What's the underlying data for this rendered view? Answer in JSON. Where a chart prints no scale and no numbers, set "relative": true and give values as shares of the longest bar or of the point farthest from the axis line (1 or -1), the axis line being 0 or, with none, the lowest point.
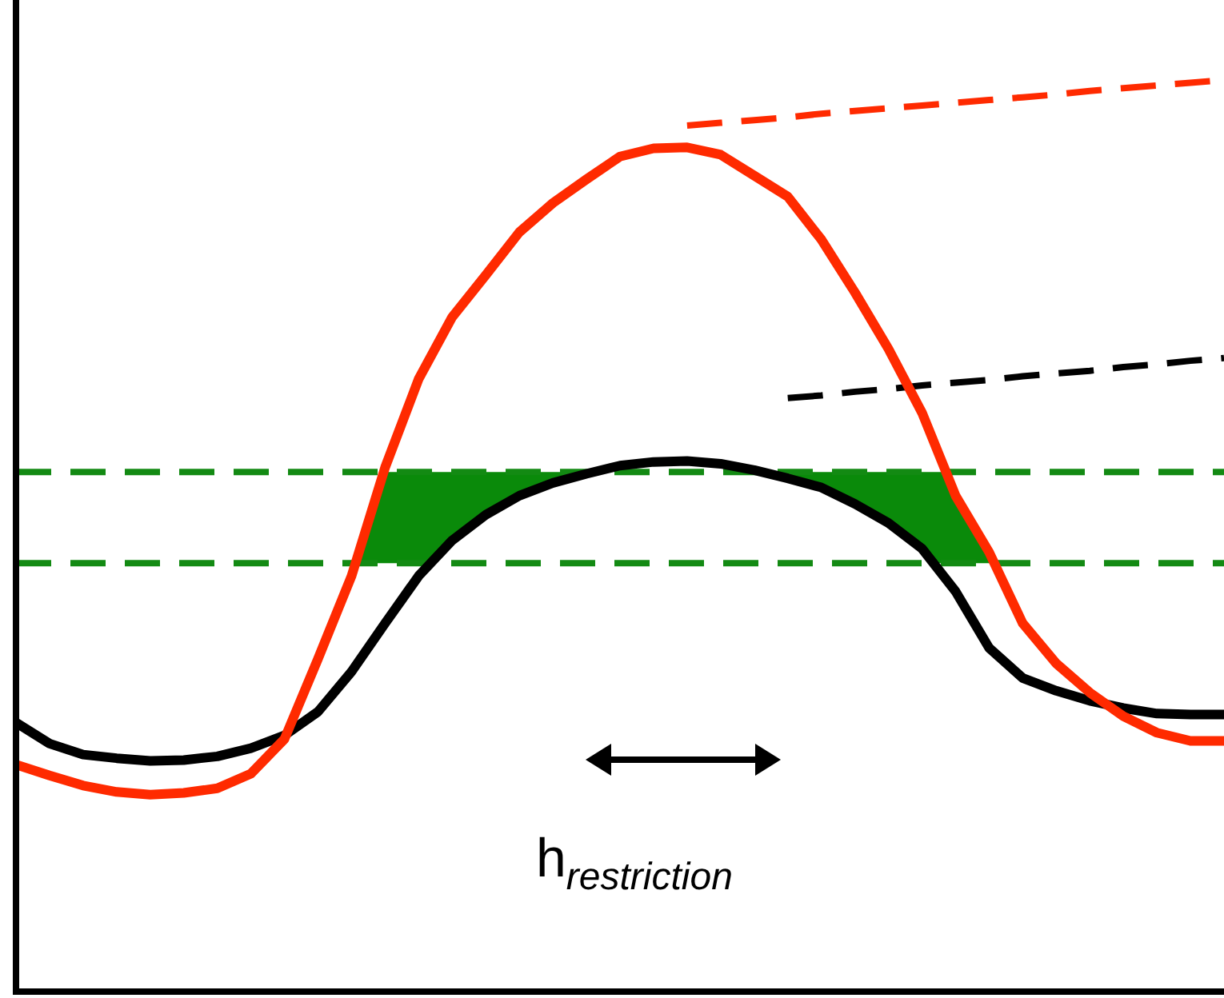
{
  "chart_data": {
    "type": "line",
    "relative": true,
    "categories": [
      null,
      null,
      null,
      null,
      null,
      null,
      null,
      null,
      null,
      null,
      null,
      null,
      null,
      null,
      null,
      null,
      null,
      null,
      null,
      null,
      null,
      null,
      null,
      null,
      null,
      null,
      null,
      null,
      null,
      null,
      null,
      null,
      null,
      null,
      null,
      null,
      null
    ],
    "series": [
      {
        "color": "#ff2a00",
        "values": [
          0.249,
          0.237,
          0.226,
          0.219,
          0.216,
          0.218,
          0.223,
          0.239,
          0.277,
          0.365,
          0.456,
          0.575,
          0.672,
          0.74,
          0.786,
          0.833,
          0.865,
          0.891,
          0.916,
          0.925,
          0.926,
          0.918,
          0.895,
          0.872,
          0.825,
          0.767,
          0.705,
          0.635,
          0.544,
          0.482,
          0.404,
          0.36,
          0.328,
          0.302,
          0.284,
          0.275,
          0.275
        ]
      },
      {
        "color": "#000000",
        "values": [
          0.295,
          0.272,
          0.26,
          0.256,
          0.253,
          0.254,
          0.258,
          0.267,
          0.281,
          0.307,
          0.351,
          0.404,
          0.456,
          0.495,
          0.523,
          0.544,
          0.558,
          0.568,
          0.577,
          0.581,
          0.582,
          0.579,
          0.572,
          0.563,
          0.553,
          0.535,
          0.514,
          0.486,
          0.439,
          0.377,
          0.344,
          0.33,
          0.319,
          0.311,
          0.305,
          0.304,
          0.304
        ]
      },
      {
        "color": "#ff2a00",
        "line_style": "dashed",
        "values": [
          null,
          null,
          null,
          null,
          null,
          null,
          null,
          null,
          null,
          null,
          null,
          null,
          null,
          null,
          null,
          null,
          null,
          null,
          null,
          null,
          0.95,
          0.953,
          0.956,
          0.959,
          0.963,
          0.966,
          0.969,
          0.972,
          0.975,
          0.978,
          0.981,
          0.984,
          0.988,
          0.991,
          0.994,
          0.997,
          1.0
        ]
      },
      {
        "color": "#000000",
        "line_style": "dashed",
        "values": [
          null,
          null,
          null,
          null,
          null,
          null,
          null,
          null,
          null,
          null,
          null,
          null,
          null,
          null,
          null,
          null,
          null,
          null,
          null,
          null,
          null,
          null,
          null,
          0.651,
          0.654,
          0.658,
          0.661,
          0.665,
          0.668,
          0.671,
          0.675,
          0.678,
          0.681,
          0.685,
          0.688,
          0.692,
          0.695
        ]
      }
    ],
    "ref_lines": [
      {
        "axis": "y",
        "value": 0.57,
        "color": "#138a13",
        "line_style": "dashed"
      },
      {
        "axis": "y",
        "value": 0.47,
        "color": "#138a13",
        "line_style": "dashed"
      }
    ],
    "bands": [
      {
        "axis": "y",
        "from": 0.47,
        "to": 0.57,
        "color": "#0a8a0a"
      }
    ],
    "annotations": [
      "h$_{restriction}$"
    ],
    "marker": "none",
    "legend": false
  }
}
